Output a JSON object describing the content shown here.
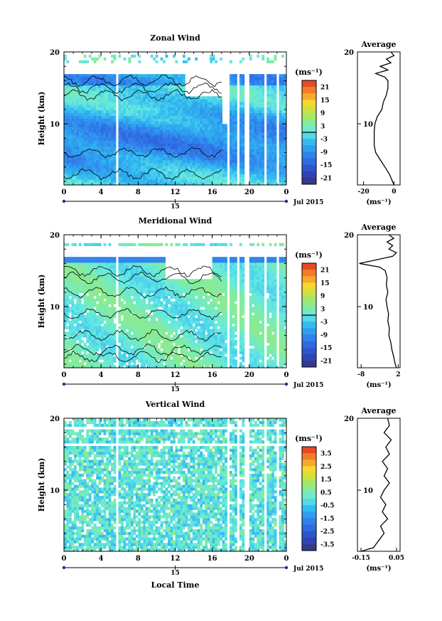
{
  "chart_data": [
    {
      "type": "heatmap",
      "title": "Zonal Wind",
      "ylabel": "Height (km)",
      "xlabel": "",
      "x_ticks": [
        "0",
        "4",
        "8",
        "12",
        "16",
        "20",
        "0"
      ],
      "x_lim": [
        0,
        24
      ],
      "y_ticks": [
        "20",
        "10"
      ],
      "y_lim": [
        1.5,
        20
      ],
      "date_day": "15",
      "date_label": "Jul 2015",
      "colorbar": {
        "unit": "(ms⁻¹)",
        "labels": [
          "21",
          "15",
          "9",
          "3",
          "-3",
          "-9",
          "-15",
          "-21"
        ],
        "range": [
          -24,
          24
        ],
        "zero_line": true
      },
      "profile": {
        "title": "Average",
        "x_ticks": [
          "-20",
          "0"
        ],
        "x_lim": [
          -24,
          4
        ],
        "xlabel": "(ms⁻¹)",
        "y_tick": "10",
        "heights": [
          1.5,
          2,
          3,
          4,
          5,
          6,
          7,
          8,
          9,
          10,
          11,
          12,
          13,
          14,
          15,
          16,
          16.5,
          17,
          17.5,
          18,
          18.5,
          19,
          19.5,
          20
        ],
        "values": [
          0,
          -1,
          -3,
          -6,
          -9,
          -12,
          -13,
          -13,
          -13,
          -12.5,
          -11,
          -8,
          -7,
          -5,
          -4,
          -4,
          -6,
          -12,
          -4,
          -9,
          -2,
          -5,
          0,
          -2
        ]
      }
    },
    {
      "type": "heatmap",
      "title": "Meridional Wind",
      "ylabel": "Height (km)",
      "xlabel": "",
      "x_ticks": [
        "0",
        "4",
        "8",
        "12",
        "16",
        "20",
        "0"
      ],
      "x_lim": [
        0,
        24
      ],
      "y_ticks": [
        "20",
        "10"
      ],
      "y_lim": [
        1.5,
        20
      ],
      "date_day": "15",
      "date_label": "Jul 2015",
      "colorbar": {
        "unit": "(ms⁻¹)",
        "labels": [
          "21",
          "15",
          "9",
          "3",
          "-3",
          "-9",
          "-15",
          "-21"
        ],
        "range": [
          -24,
          24
        ],
        "zero_line": true
      },
      "profile": {
        "title": "Average",
        "x_ticks": [
          "-8",
          "2"
        ],
        "x_lim": [
          -9,
          2.5
        ],
        "xlabel": "(ms⁻¹)",
        "y_tick": "10",
        "heights": [
          1.5,
          2,
          3,
          4,
          5,
          6,
          7,
          8,
          9,
          10,
          11,
          12,
          13,
          14,
          15,
          15.5,
          16,
          16.5,
          17,
          17.5,
          18,
          18.5,
          19,
          19.5,
          20
        ],
        "values": [
          1.5,
          1.2,
          0.8,
          0.3,
          0.0,
          -0.5,
          -0.4,
          -0.8,
          -0.6,
          -1.0,
          -1.3,
          -0.8,
          -1.2,
          -1.0,
          -1.5,
          -3,
          -8.5,
          -4,
          0.5,
          1.5,
          -0.5,
          0.5,
          -1,
          0.8,
          -0.5
        ]
      }
    },
    {
      "type": "heatmap",
      "title": "Vertical Wind",
      "ylabel": "Height (km)",
      "xlabel": "Local Time",
      "x_ticks": [
        "0",
        "4",
        "8",
        "12",
        "16",
        "20",
        "0"
      ],
      "x_lim": [
        0,
        24
      ],
      "y_ticks": [
        "20",
        "10"
      ],
      "y_lim": [
        1.5,
        20
      ],
      "date_day": "15",
      "date_label": "Jul 2015",
      "colorbar": {
        "unit": "(ms⁻¹)",
        "labels": [
          "3.5",
          "2.5",
          "1.5",
          "0.5",
          "-0.5",
          "-1.5",
          "-2.5",
          "-3.5"
        ],
        "range": [
          -4,
          4
        ],
        "zero_line": false
      },
      "profile": {
        "title": "Average",
        "x_ticks": [
          "-0.15",
          "0.05"
        ],
        "x_lim": [
          -0.17,
          0.07
        ],
        "xlabel": "(ms⁻¹)",
        "y_tick": "10",
        "heights": [
          1.5,
          2,
          3,
          4,
          5,
          6,
          7,
          8,
          9,
          10,
          11,
          12,
          13,
          14,
          15,
          16,
          17,
          18,
          19,
          20
        ],
        "values": [
          -0.15,
          -0.08,
          -0.05,
          -0.02,
          -0.04,
          0.0,
          -0.03,
          -0.01,
          -0.04,
          -0.02,
          0.01,
          -0.02,
          0.0,
          -0.03,
          0.01,
          -0.01,
          0.02,
          -0.02,
          0.01,
          0.0
        ]
      }
    }
  ]
}
